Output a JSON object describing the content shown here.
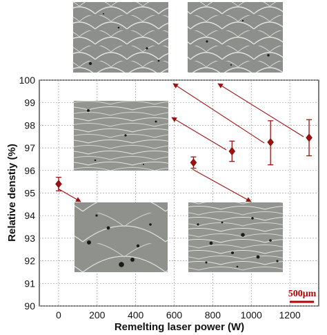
{
  "chart_data": {
    "type": "scatter",
    "xlabel": "Remelting laser power (W)",
    "ylabel": "Relative denstiy (%)",
    "xlim": [
      -100,
      1350
    ],
    "ylim": [
      90,
      100
    ],
    "x_ticks": [
      "0",
      "200",
      "400",
      "600",
      "800",
      "1000",
      "1200"
    ],
    "y_ticks": [
      "90",
      "91",
      "92",
      "93",
      "94",
      "95",
      "96",
      "97",
      "98",
      "99",
      "100"
    ],
    "grid": true,
    "marker": "diamond",
    "marker_color": "#a01010",
    "points": [
      {
        "x": 0,
        "y": 95.4,
        "err_low": 95.1,
        "err_high": 95.7
      },
      {
        "x": 700,
        "y": 96.35,
        "err_low": 96.1,
        "err_high": 96.6
      },
      {
        "x": 900,
        "y": 96.85,
        "err_low": 96.4,
        "err_high": 97.3
      },
      {
        "x": 1100,
        "y": 97.25,
        "err_low": 96.25,
        "err_high": 98.2
      },
      {
        "x": 1300,
        "y": 97.45,
        "err_low": 96.65,
        "err_high": 98.25
      }
    ],
    "scale_bar": "500μm"
  }
}
